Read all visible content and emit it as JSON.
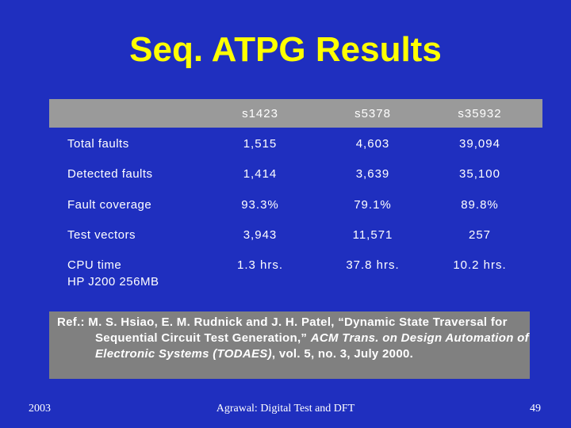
{
  "title": "Seq. ATPG Results",
  "table": {
    "columns": [
      "s1423",
      "s5378",
      "s35932"
    ],
    "rows": [
      {
        "label": [
          "Total faults"
        ],
        "cells": [
          "1,515",
          "4,603",
          "39,094"
        ]
      },
      {
        "label": [
          "Detected faults"
        ],
        "cells": [
          "1,414",
          "3,639",
          "35,100"
        ]
      },
      {
        "label": [
          "Fault coverage"
        ],
        "cells": [
          "93.3%",
          "79.1%",
          "89.8%"
        ]
      },
      {
        "label": [
          "Test vectors"
        ],
        "cells": [
          "3,943",
          "11,571",
          "257"
        ]
      },
      {
        "label": [
          "CPU time",
          "HP J200 256MB"
        ],
        "cells": [
          "1.3 hrs.",
          "37.8 hrs.",
          "10.2 hrs."
        ]
      }
    ]
  },
  "reference": {
    "prefix": "Ref.: M. S. Hsiao, E. M. Rudnick and J. H. Patel, “Dynamic State Traversal for Sequential Circuit Test Generation,” ",
    "journal": "ACM Trans. on Design Automation of Electronic Systems (TODAES)",
    "suffix": ", vol. 5, no. 3, July 2000."
  },
  "footer": {
    "year": "2003",
    "center": "Agrawal: Digital Test and DFT",
    "page": "49"
  }
}
